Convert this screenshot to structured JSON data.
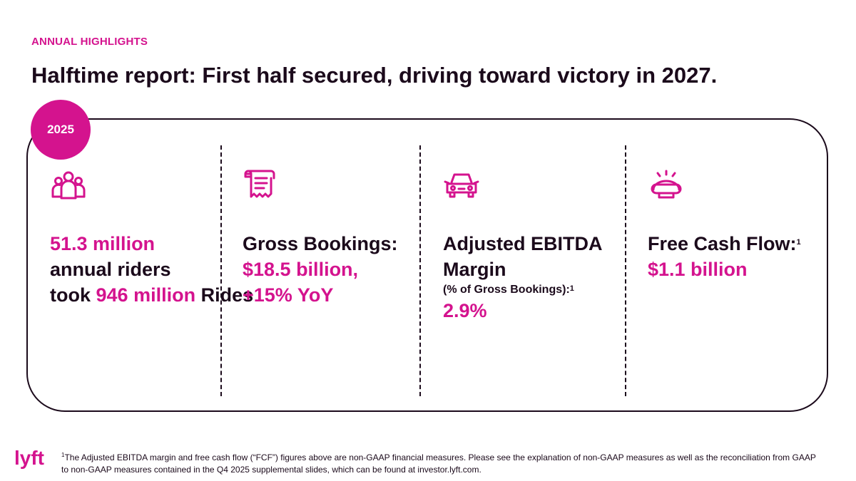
{
  "header": {
    "eyebrow": "ANNUAL HIGHLIGHTS",
    "title": "Halftime report: First half secured, driving toward victory in 2027."
  },
  "year_badge": "2025",
  "columns": [
    {
      "icon": "riders-icon",
      "parts": [
        "51.3 million",
        "annual riders",
        "took",
        "946 million",
        "Rides"
      ]
    },
    {
      "icon": "receipt-icon",
      "parts": [
        "Gross Bookings:",
        "$18.5 billion,",
        "+15% YoY"
      ]
    },
    {
      "icon": "car-icon",
      "parts": [
        "Adjusted EBITDA Margin",
        "(% of Gross Bookings):",
        "1",
        "2.9%"
      ]
    },
    {
      "icon": "siren-light-icon",
      "parts": [
        "Free Cash Flow:",
        "1",
        "$1.1 billion"
      ]
    }
  ],
  "footnote": {
    "marker": "1",
    "text": "The Adjusted EBITDA margin and free cash flow (“FCF”) figures above are non-GAAP financial measures. Please see the explanation of non-GAAP measures as well as the reconciliation from GAAP to non-GAAP measures contained in the Q4 2025 supplemental slides, which can be found at investor.lyft.com."
  },
  "logo": {
    "text": "lyft"
  },
  "colors": {
    "accent": "#d4138e",
    "ink": "#1b0a1b",
    "background": "#ffffff"
  }
}
